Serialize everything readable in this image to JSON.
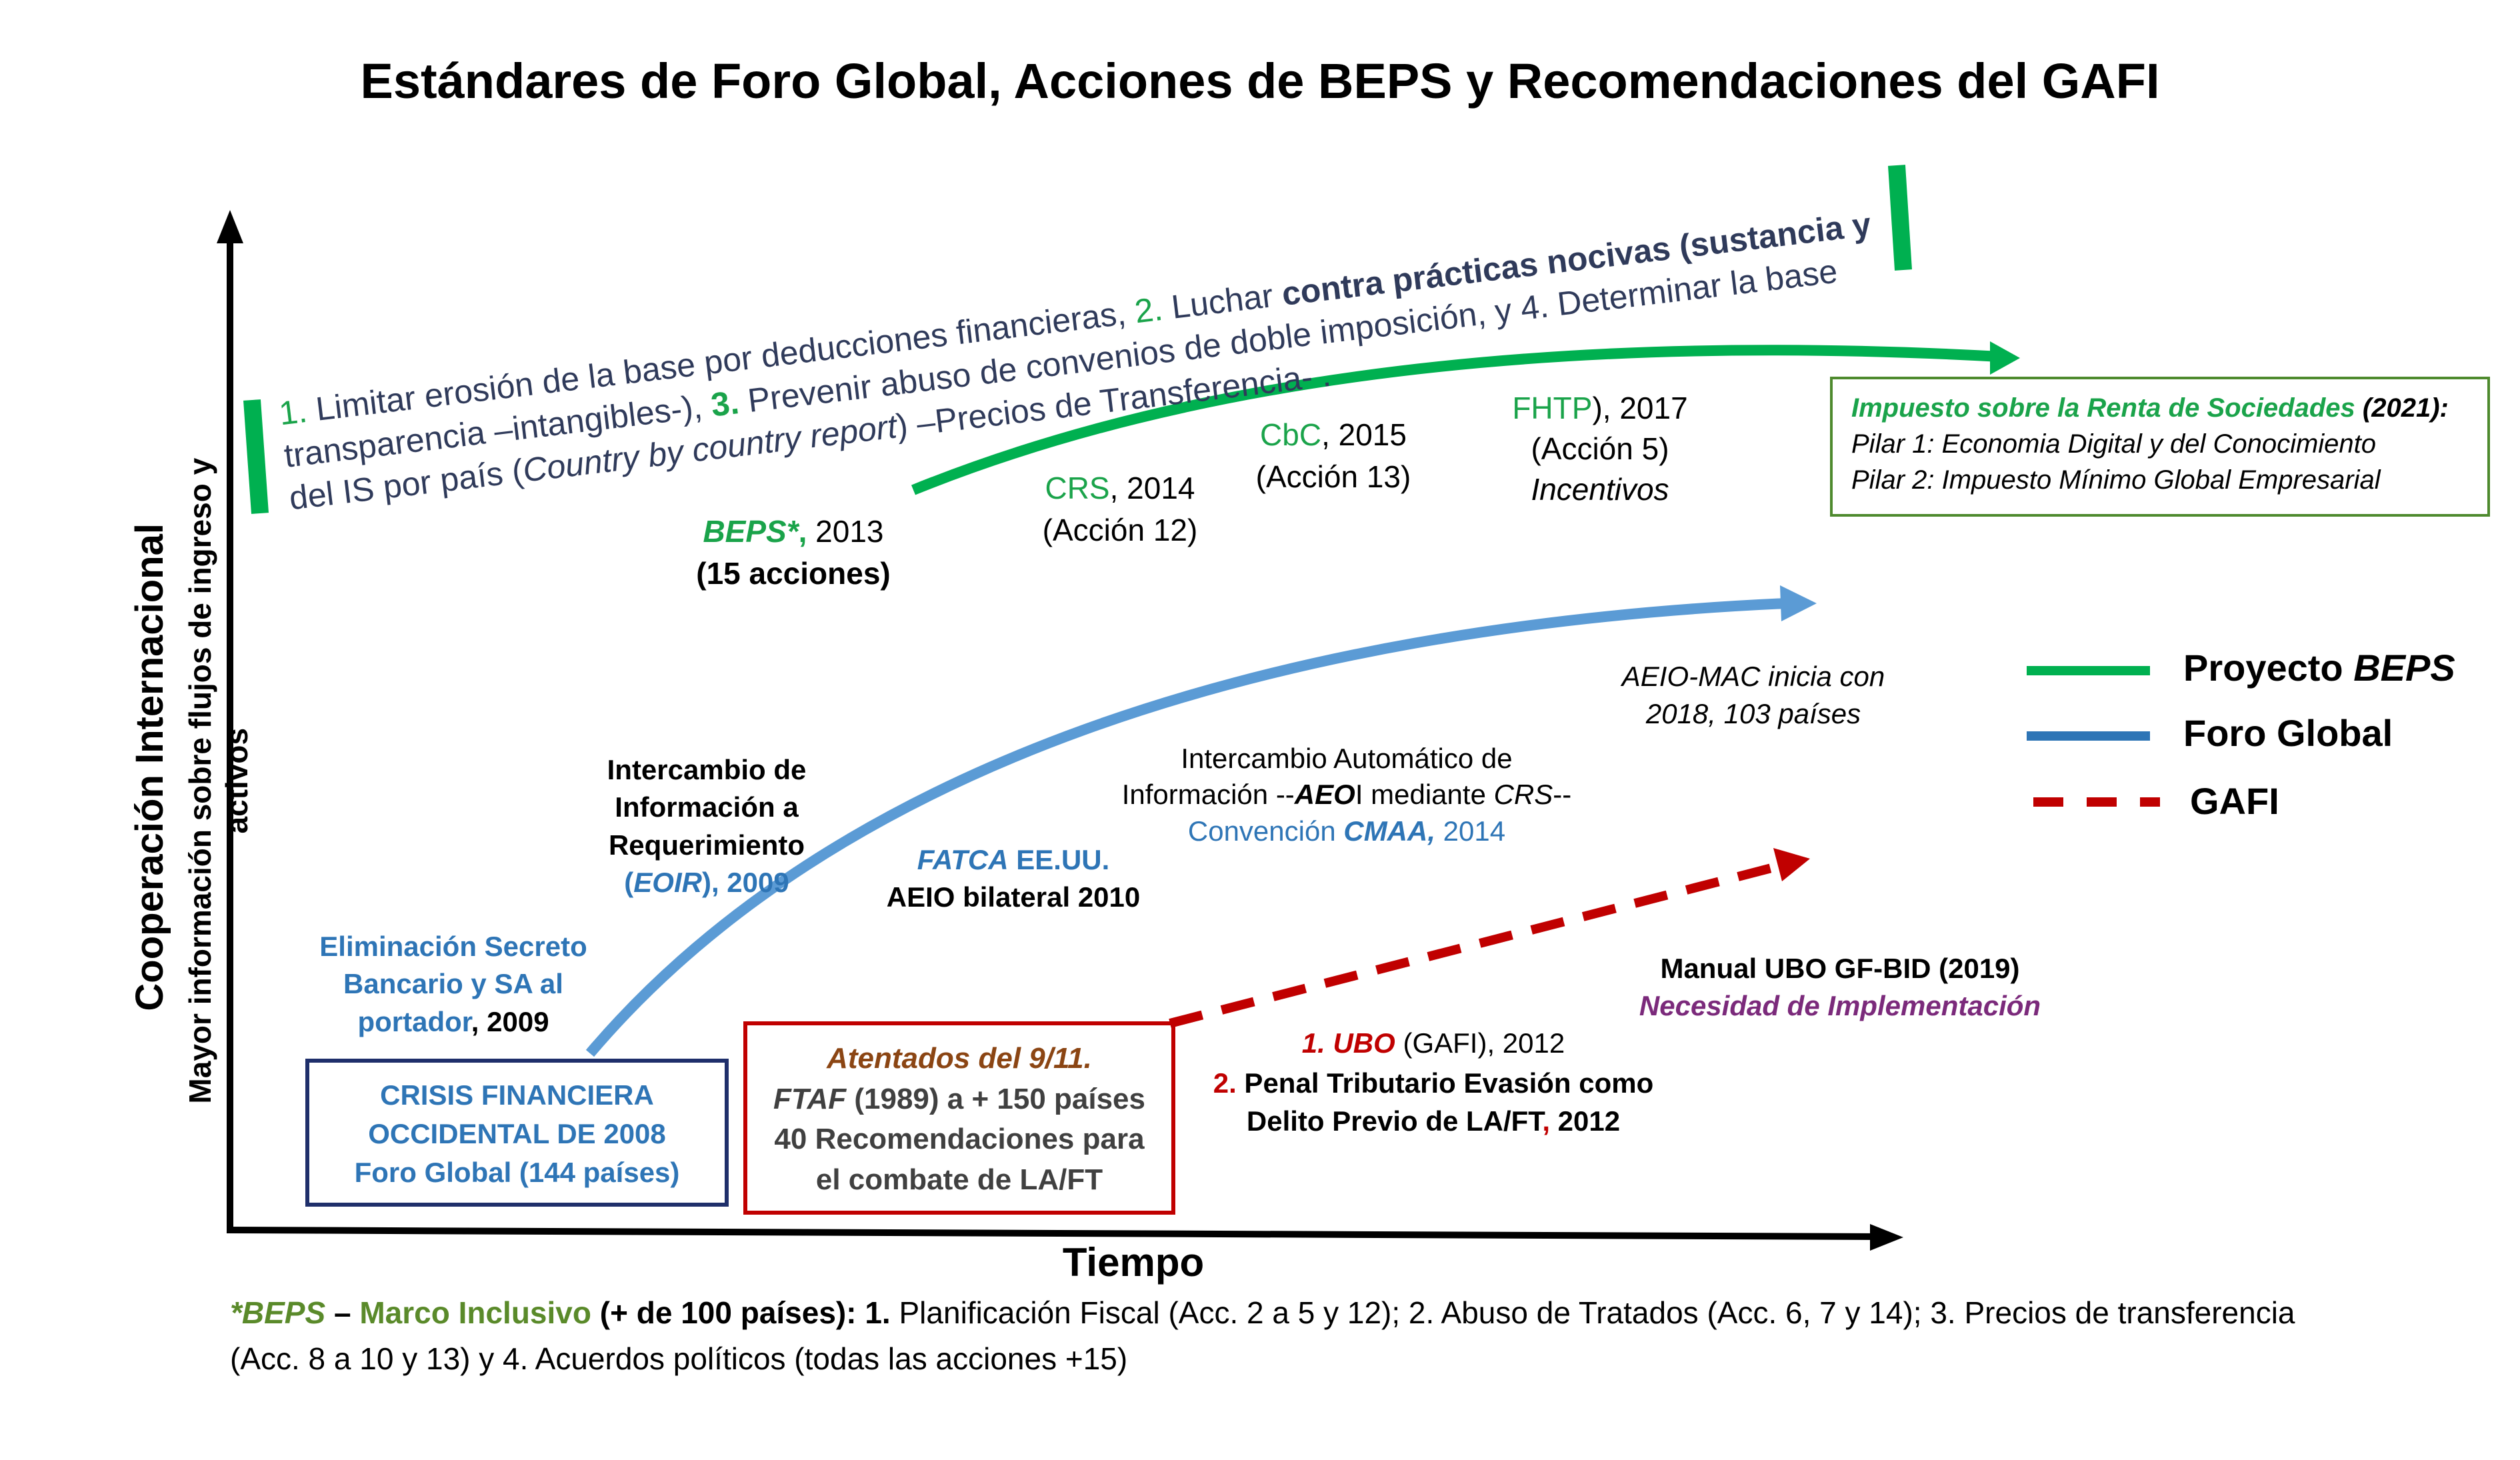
{
  "title": "Estándares de Foro Global, Acciones de BEPS y Recomendaciones del GAFI",
  "axes": {
    "y_main": "Cooperación Internacional",
    "y_sub": "Mayor información sobre flujos de ingreso y activos",
    "x": "Tiempo"
  },
  "colors": {
    "beps": "#00b050",
    "foro": "#5b9bd5",
    "gafi": "#c00000"
  },
  "beps_banner": {
    "n1": "1.",
    "t1": " Limitar erosión de la base por deducciones financieras, ",
    "n2": "2.",
    "t2a": " Luchar ",
    "t2b": "contra prácticas  nocivas (sustancia y",
    "l2": "transparencia –intangibles-), ",
    "n3": "3.",
    "t3": " Prevenir abuso de convenios de doble imposición, y 4. Determinar la base",
    "l3a": "del IS por país (",
    "l3b": "Country by country report",
    "l3c": ") –Precios de Transferencia- ."
  },
  "beps_items": {
    "beps": {
      "name": "BEPS*",
      "sep": ",",
      "year": " 2013",
      "sub": "(15 acciones)"
    },
    "crs": {
      "name": "CRS",
      "year": ", 2014",
      "sub": "(Acción 12)"
    },
    "cbc": {
      "name": "CbC",
      "year": ", 2015",
      "sub": "(Acción 13)"
    },
    "fhtp": {
      "name": "FHTP",
      "year": "),  2017",
      "sub": "(Acción 5)",
      "sub2": "Incentivos"
    }
  },
  "impuesto_box": {
    "title": "Impuesto sobre la Renta de Sociedades",
    "year": " (2021):",
    "p1": "Pilar 1: Economia  Digital y del Conocimiento",
    "p2": "Pilar 2: Impuesto Mínimo Global Empresarial"
  },
  "legend": {
    "beps_a": "Proyecto ",
    "beps_b": "BEPS",
    "foro": "Foro Global",
    "gafi": "GAFI"
  },
  "foro_items": {
    "aeio_mac_1": "AEIO-MAC inicia con",
    "aeio_mac_2": "2018, 103 países",
    "aeo_1": "Intercambio Automático de",
    "aeo_2a": "Información --",
    "aeo_2b": "AEO",
    "aeo_2c": "I mediante ",
    "aeo_2d": "CRS",
    "aeo_2e": "--",
    "aeo_3a": "Convención ",
    "aeo_3b": "CMAA,",
    "aeo_3c": " 2014",
    "eoir_1": "Intercambio de",
    "eoir_2": "Información a",
    "eoir_3": "Requerimiento",
    "eoir_4a": "(",
    "eoir_4b": "EOIR",
    "eoir_4c": "), 2009",
    "fatca_a": "FATCA",
    "fatca_b": " EE.UU.",
    "fatca_2": "AEIO bilateral 2010",
    "elim_1": "Eliminación Secreto",
    "elim_2": "Bancario y SA al",
    "elim_3a": "portador",
    "elim_3b": ", 2009"
  },
  "crisis_box": {
    "l1": "CRISIS FINANCIERA",
    "l2": "OCCIDENTAL DE 2008",
    "l3": "Foro Global (144 países)"
  },
  "atentados_box": {
    "l1": "Atentados del 9/11.",
    "l2a": "FTAF",
    "l2b": " (1989) a + 150 países",
    "l3": "40 Recomendaciones para",
    "l4": "el combate de LA/FT"
  },
  "gafi_items": {
    "manual": "Manual UBO GF-BID  (2019)",
    "necesidad": "Necesidad de Implementación",
    "ubo_n": "1. UBO",
    "ubo_t": " (GAFI), 2012",
    "penal_n": "2.",
    "penal_t": " Penal Tributario Evasión como",
    "penal_2a": "Delito Previo de LA/FT",
    "penal_2b": ",",
    "penal_2c": " 2012"
  },
  "footnote": {
    "a": "*BEPS",
    "b": " – ",
    "c": "Marco Inclusivo",
    "d": " (+ de 100 países): 1. ",
    "e": "Planificación Fiscal (Acc. 2 a 5 y 12);  2. Abuso de Tratados (Acc. 6, 7 y 14); 3. Precios de transferencia",
    "f": "(Acc. 8 a 10 y 13) y 4. Acuerdos políticos (todas las acciones +15)"
  }
}
